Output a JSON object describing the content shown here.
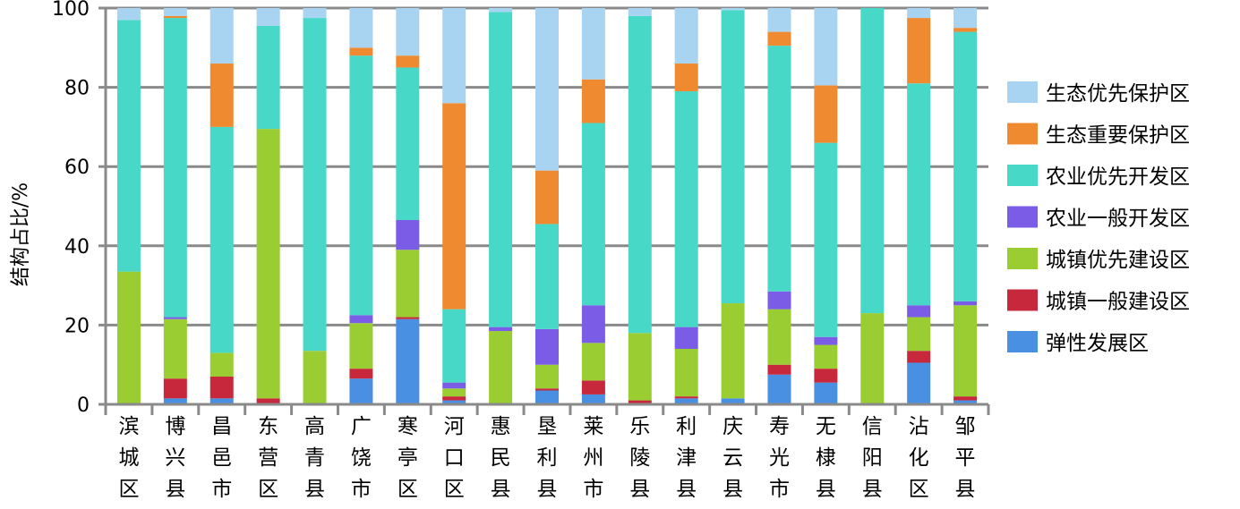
{
  "chart_data": {
    "type": "bar",
    "stacked": true,
    "title": "",
    "xlabel": "",
    "ylabel": "结构占比/%",
    "ylim": [
      0,
      100
    ],
    "yticks": [
      0,
      20,
      40,
      60,
      80,
      100
    ],
    "grid": true,
    "legend_position": "right",
    "categories": [
      "滨城区",
      "博兴县",
      "昌邑市",
      "东营区",
      "高青县",
      "广饶市",
      "寒亭区",
      "河口区",
      "惠民县",
      "垦利县",
      "莱州市",
      "乐陵县",
      "利津县",
      "庆云县",
      "寿光市",
      "无棣县",
      "信阳县",
      "沾化区",
      "邹平县"
    ],
    "series": [
      {
        "name": "弹性发展区",
        "color": "#4a90e2",
        "values": [
          0,
          1.5,
          1.5,
          0,
          0,
          6.5,
          21.5,
          1,
          0,
          3.5,
          2.5,
          0,
          1.5,
          1.5,
          7.5,
          5.5,
          0,
          10.5,
          1
        ]
      },
      {
        "name": "城镇一般建设区",
        "color": "#c8283c",
        "values": [
          0,
          5,
          5.5,
          1.5,
          0,
          2.5,
          0.5,
          1,
          0,
          0.5,
          3.5,
          1,
          0.5,
          0,
          2.5,
          3.5,
          0,
          3,
          1
        ]
      },
      {
        "name": "城镇优先建设区",
        "color": "#9acd32",
        "values": [
          33.5,
          15,
          6,
          68,
          13.5,
          11.5,
          17,
          2,
          18.5,
          6,
          9.5,
          17,
          12,
          24,
          14,
          6,
          23,
          8.5,
          23
        ]
      },
      {
        "name": "农业一般开发区",
        "color": "#7a5ce6",
        "values": [
          0,
          0.5,
          0,
          0,
          0,
          2,
          7.5,
          1.5,
          1,
          9,
          9.5,
          0,
          5.5,
          0,
          4.5,
          2,
          0,
          3,
          1
        ]
      },
      {
        "name": "农业优先开发区",
        "color": "#48d8c8",
        "values": [
          63.5,
          75.5,
          57,
          26,
          84,
          65.5,
          38.5,
          18.5,
          79.5,
          26.5,
          46,
          80,
          59.5,
          74,
          62,
          49,
          77,
          56,
          68
        ]
      },
      {
        "name": "生态重要保护区",
        "color": "#f08a30",
        "values": [
          0,
          0.5,
          16,
          0,
          0,
          2,
          3,
          52,
          0,
          13.5,
          11,
          0,
          7,
          0,
          3.5,
          14.5,
          0,
          16.5,
          1
        ]
      },
      {
        "name": "生态优先保护区",
        "color": "#a8d4f2",
        "values": [
          3,
          2,
          14,
          4.5,
          2.5,
          10,
          12,
          24,
          1,
          41,
          18,
          2,
          14,
          0.5,
          6,
          19.5,
          0,
          2.5,
          5
        ]
      }
    ]
  }
}
